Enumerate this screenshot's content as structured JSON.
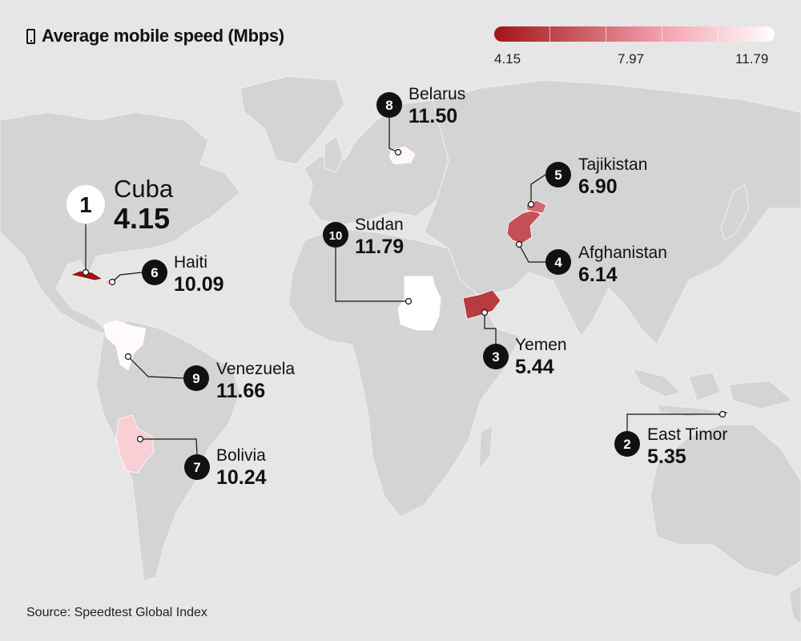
{
  "title": "Average mobile speed (Mbps)",
  "title_icon": "mobile-phone-icon",
  "legend": {
    "min_label": "4.15",
    "mid_label": "7.97",
    "max_label": "11.79",
    "min": 4.15,
    "max": 11.79,
    "color_low": "#a01414",
    "color_mid": "#f4a0ae",
    "color_high": "#ffffff"
  },
  "colors": {
    "background": "#e6e6e6",
    "land": "#d4d4d4",
    "borders": "#ececec",
    "marker": "#111111"
  },
  "countries": [
    {
      "rank": "1",
      "name": "Cuba",
      "value": "4.15",
      "speed": 4.15
    },
    {
      "rank": "2",
      "name": "East Timor",
      "value": "5.35",
      "speed": 5.35
    },
    {
      "rank": "3",
      "name": "Yemen",
      "value": "5.44",
      "speed": 5.44
    },
    {
      "rank": "4",
      "name": "Afghanistan",
      "value": "6.14",
      "speed": 6.14
    },
    {
      "rank": "5",
      "name": "Tajikistan",
      "value": "6.90",
      "speed": 6.9
    },
    {
      "rank": "6",
      "name": "Haiti",
      "value": "10.09",
      "speed": 10.09
    },
    {
      "rank": "7",
      "name": "Bolivia",
      "value": "10.24",
      "speed": 10.24
    },
    {
      "rank": "8",
      "name": "Belarus",
      "value": "11.50",
      "speed": 11.5
    },
    {
      "rank": "9",
      "name": "Venezuela",
      "value": "11.66",
      "speed": 11.66
    },
    {
      "rank": "10",
      "name": "Sudan",
      "value": "11.79",
      "speed": 11.79
    }
  ],
  "source": "Source: Speedtest Global Index"
}
